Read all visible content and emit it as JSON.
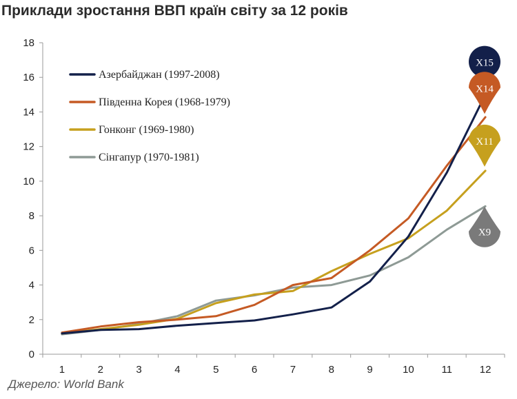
{
  "title": "Приклади зростання ВВП країн світу за 12 років",
  "source": "Джерело: World Bank",
  "chart_data": {
    "type": "line",
    "title": "Приклади зростання ВВП країн світу за 12 років",
    "xlabel": "",
    "ylabel": "",
    "x": [
      1,
      2,
      3,
      4,
      5,
      6,
      7,
      8,
      9,
      10,
      11,
      12
    ],
    "x_ticks": [
      "1",
      "2",
      "3",
      "4",
      "5",
      "6",
      "7",
      "8",
      "9",
      "10",
      "11",
      "12"
    ],
    "y_ticks": [
      "0",
      "2",
      "4",
      "6",
      "8",
      "10",
      "12",
      "14",
      "16",
      "18"
    ],
    "ylim": [
      0,
      18
    ],
    "grid": false,
    "legend_position": "top-left",
    "series": [
      {
        "name": "Азербайджан (1997-2008)",
        "color": "#13204a",
        "values": [
          1.2,
          1.4,
          1.45,
          1.65,
          1.8,
          1.95,
          2.3,
          2.7,
          4.2,
          6.8,
          10.5,
          15.0
        ]
      },
      {
        "name": "Південна Корея (1968-1979)",
        "color": "#c55a24",
        "values": [
          1.25,
          1.6,
          1.85,
          2.0,
          2.2,
          2.85,
          4.0,
          4.4,
          6.0,
          7.85,
          10.9,
          13.7
        ]
      },
      {
        "name": "Гонконг (1969-1980)",
        "color": "#c6a01e",
        "values": [
          1.2,
          1.45,
          1.7,
          2.05,
          2.95,
          3.45,
          3.65,
          4.8,
          5.8,
          6.7,
          8.3,
          10.6
        ]
      },
      {
        "name": "Сінгапур (1970-1981)",
        "color": "#8e9a95",
        "values": [
          1.15,
          1.4,
          1.75,
          2.2,
          3.1,
          3.4,
          3.85,
          4.0,
          4.55,
          5.6,
          7.2,
          8.55
        ]
      }
    ],
    "badges": [
      {
        "label": "X15",
        "value": 16.9,
        "color": "#13204a",
        "shape": "circle"
      },
      {
        "label": "X14",
        "value": 15.4,
        "color": "#c55a24",
        "shape": "drop-down"
      },
      {
        "label": "X11",
        "value": 12.35,
        "color": "#c6a01e",
        "shape": "drop-down"
      },
      {
        "label": "X9",
        "value": 7.1,
        "color": "#7a7a7a",
        "shape": "drop-up"
      }
    ]
  }
}
